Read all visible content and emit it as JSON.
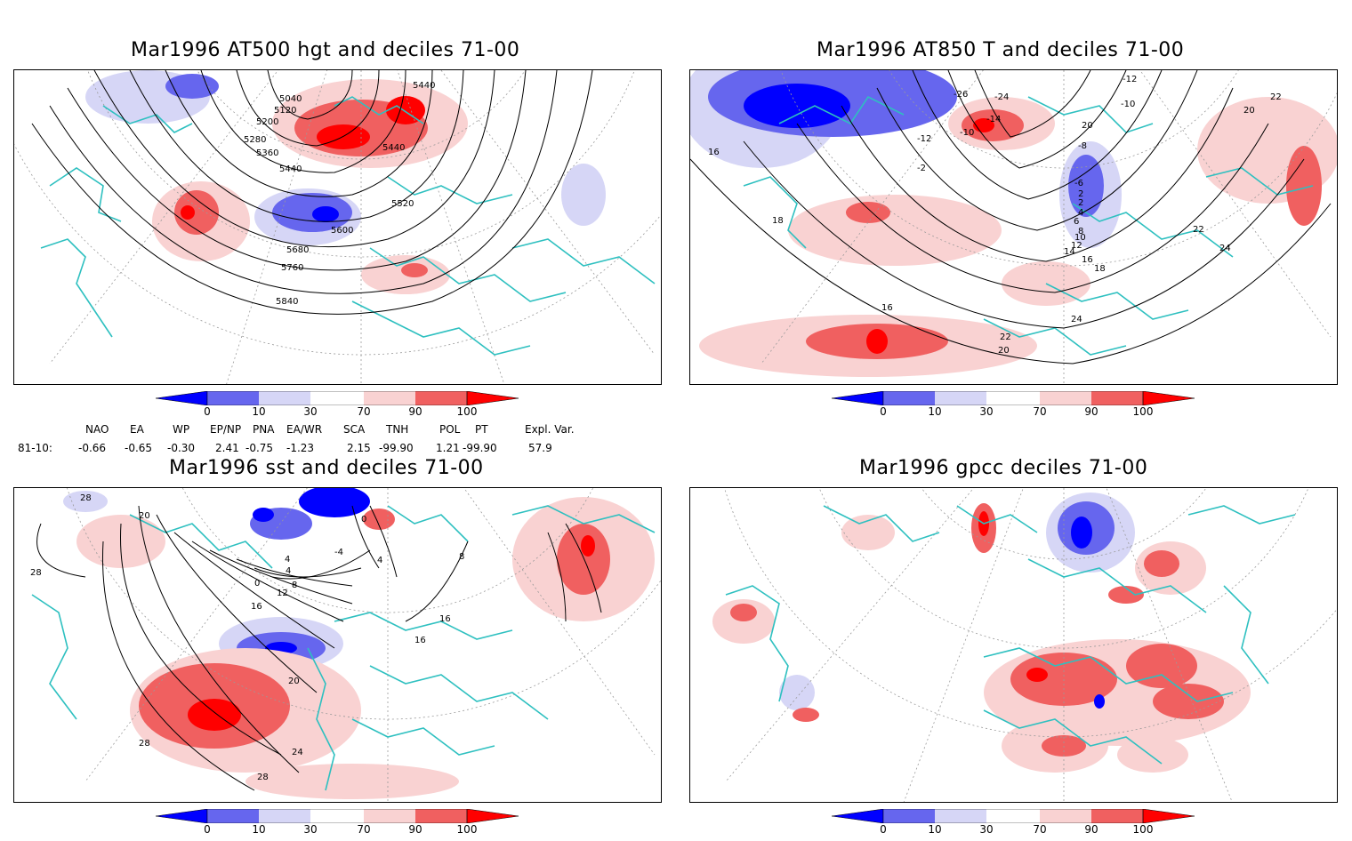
{
  "panels": [
    {
      "id": "p1",
      "title": "Mar1996 AT500 hgt and deciles 71-00",
      "contours": [
        "5040",
        "5120",
        "5200",
        "5280",
        "5360",
        "5440",
        "5440",
        "5440",
        "5520",
        "5600",
        "5680",
        "5760",
        "5840"
      ]
    },
    {
      "id": "p2",
      "title": "Mar1996 AT850 T and deciles 71-00",
      "contours": [
        "-12",
        "-10",
        "-26",
        "-24",
        "-14",
        "-10",
        "-12",
        "-8",
        "-6",
        "-2",
        "2",
        "2",
        "4",
        "6",
        "8",
        "10",
        "12",
        "14",
        "16",
        "18",
        "20",
        "22",
        "22",
        "24",
        "24",
        "20",
        "22",
        "16",
        "18",
        "16",
        "20"
      ]
    },
    {
      "id": "p3",
      "title": "Mar1996 sst and deciles 71-00",
      "contours": [
        "28",
        "20",
        "28",
        "0",
        "4",
        "-4",
        "0",
        "4",
        "8",
        "12",
        "16",
        "16",
        "16",
        "20",
        "24",
        "28",
        "28",
        "4",
        "8"
      ]
    },
    {
      "id": "p4",
      "title": "Mar1996 gpcc deciles 71-00",
      "contours": []
    }
  ],
  "colorbar": {
    "ticks": [
      "0",
      "10",
      "30",
      "70",
      "90",
      "100"
    ],
    "colors": {
      "deep_blue": "#0000ff",
      "mid_blue": "#6666ee",
      "light_blue": "#d6d6f6",
      "white": "#ffffff",
      "light_red": "#f9d2d2",
      "mid_red": "#f06060",
      "deep_red": "#ff0000"
    }
  },
  "index_table": {
    "headers": [
      "NAO",
      "EA",
      "WP",
      "EP/NP",
      "PNA",
      "EA/WR",
      "SCA",
      "TNH",
      "POL",
      "PT",
      "Expl. Var."
    ],
    "row_label": "81-10:",
    "values": [
      "-0.66",
      "-0.65",
      "-0.30",
      "2.41",
      "-0.75",
      "-1.23",
      "2.15",
      "-99.90",
      "1.21",
      "-99.90",
      "57.9"
    ]
  },
  "map_colors": {
    "coast": "#2ec0c0",
    "contour": "#000000",
    "grid": "#9a9a9a"
  }
}
